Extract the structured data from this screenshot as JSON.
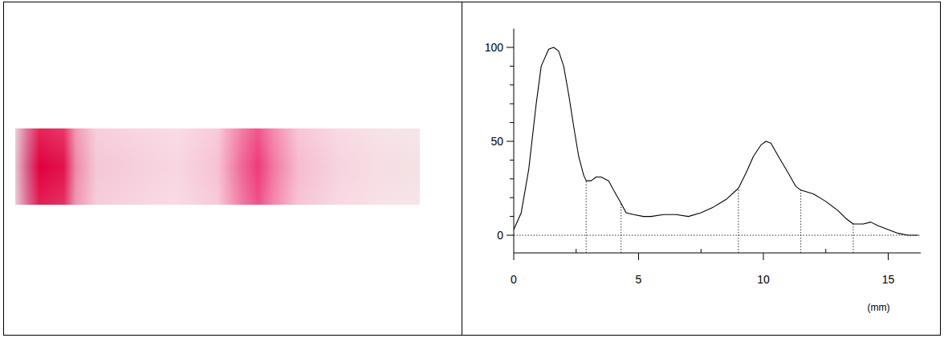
{
  "chart_data": {
    "type": "line",
    "x_label": "(mm)",
    "x": [
      0,
      0.3,
      0.6,
      0.9,
      1.1,
      1.4,
      1.6,
      1.8,
      2.0,
      2.2,
      2.4,
      2.6,
      2.8,
      2.9,
      3.1,
      3.3,
      3.5,
      3.8,
      4.0,
      4.3,
      4.5,
      4.8,
      5.2,
      5.5,
      6.0,
      6.5,
      7.0,
      7.5,
      8.0,
      8.5,
      9.0,
      9.3,
      9.6,
      9.9,
      10.1,
      10.3,
      10.6,
      11.0,
      11.3,
      11.5,
      12.0,
      12.5,
      13.0,
      13.3,
      13.6,
      14.0,
      14.3,
      14.6,
      15.0,
      15.4,
      15.8,
      16.2
    ],
    "values": [
      3,
      12,
      35,
      70,
      90,
      99,
      100,
      98,
      90,
      75,
      58,
      42,
      32,
      29,
      29,
      31,
      31,
      29,
      24,
      17,
      12,
      11,
      10,
      10,
      11,
      11,
      10,
      12,
      15,
      19,
      25,
      33,
      42,
      48,
      50,
      49,
      42,
      33,
      26,
      24,
      22,
      18,
      13,
      9,
      6,
      6,
      7,
      5,
      3,
      1,
      0,
      0
    ],
    "color": "#000000",
    "xlim": [
      0,
      16.3
    ],
    "ylim": [
      -9.4,
      110
    ],
    "xticks": [
      0,
      5,
      10,
      15
    ],
    "yticks": [
      0,
      50,
      100
    ],
    "x_minor_ticks": [
      2.5,
      7.5,
      12.5
    ],
    "y_minor_ticks": [
      10,
      20,
      30,
      40,
      60,
      70,
      80,
      90
    ],
    "dividers": [
      2.9,
      4.3,
      9.0,
      11.5,
      13.6
    ],
    "baseline": 0,
    "grid": false
  }
}
